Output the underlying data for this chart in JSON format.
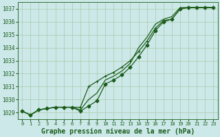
{
  "background_color": "#cce8e8",
  "grid_color": "#aacaaa",
  "line_color": "#1a5c1a",
  "title": "Graphe pression niveau de la mer (hPa)",
  "title_fontsize": 7.0,
  "xlim": [
    -0.5,
    23.5
  ],
  "ylim": [
    1028.5,
    1037.5
  ],
  "yticks": [
    1029,
    1030,
    1031,
    1032,
    1033,
    1034,
    1035,
    1036,
    1037
  ],
  "xticks": [
    0,
    1,
    2,
    3,
    4,
    5,
    6,
    7,
    8,
    9,
    10,
    11,
    12,
    13,
    14,
    15,
    16,
    17,
    18,
    19,
    20,
    21,
    22,
    23
  ],
  "series1_x": [
    0,
    1,
    2,
    3,
    4,
    5,
    6,
    7,
    8,
    9,
    10,
    11,
    12,
    13,
    14,
    15,
    16,
    17,
    18,
    19,
    20,
    21,
    22,
    23
  ],
  "series1_y": [
    1029.1,
    1028.8,
    1029.2,
    1029.3,
    1029.4,
    1029.4,
    1029.4,
    1029.4,
    1031.0,
    1031.4,
    1031.8,
    1032.1,
    1032.5,
    1033.0,
    1033.7,
    1034.5,
    1035.5,
    1036.1,
    1036.2,
    1037.0,
    1037.1,
    1037.1,
    1037.1,
    1037.1
  ],
  "series2_x": [
    0,
    1,
    2,
    3,
    4,
    5,
    6,
    7,
    8,
    9,
    10,
    11,
    12,
    13,
    14,
    15,
    16,
    17,
    18,
    19,
    20,
    21,
    22,
    23
  ],
  "series2_y": [
    1029.1,
    1028.8,
    1029.2,
    1029.3,
    1029.4,
    1029.4,
    1029.4,
    1029.1,
    1029.5,
    1029.9,
    1031.2,
    1031.5,
    1031.9,
    1032.5,
    1033.3,
    1034.2,
    1035.3,
    1036.0,
    1036.2,
    1037.0,
    1037.1,
    1037.1,
    1037.1,
    1037.1
  ],
  "series3_x": [
    0,
    1,
    2,
    3,
    4,
    5,
    6,
    7,
    8,
    9,
    10,
    11,
    12,
    13,
    14,
    15,
    16,
    17,
    18,
    19,
    20,
    21,
    22,
    23
  ],
  "series3_y": [
    1029.1,
    1028.8,
    1029.2,
    1029.3,
    1029.4,
    1029.4,
    1029.4,
    1029.2,
    1030.0,
    1030.5,
    1031.5,
    1031.8,
    1032.2,
    1032.8,
    1034.0,
    1034.8,
    1035.8,
    1036.2,
    1036.4,
    1037.1,
    1037.1,
    1037.1,
    1037.1,
    1037.1
  ],
  "tick_fontsize": 5.5,
  "tick_fontsize_x": 5.0
}
